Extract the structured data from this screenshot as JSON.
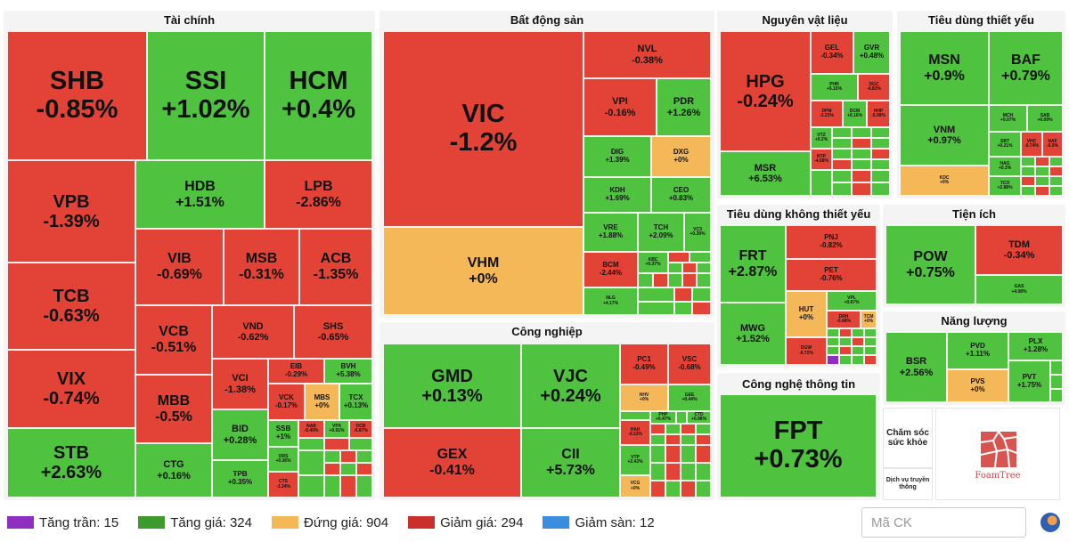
{
  "sectors": {
    "tai_chinh": "Tài chính",
    "bat_dong_san": "Bất động sản",
    "nguyen_vat_lieu": "Nguyên vật liệu",
    "tieu_dung_thiet_yeu": "Tiêu dùng thiết yếu",
    "tieu_dung_khong_thiet_yeu": "Tiêu dùng không thiết yếu",
    "tien_ich": "Tiện ích",
    "cong_nghiep": "Công nghiệp",
    "nang_luong": "Năng lượng",
    "cong_nghe_thong_tin": "Công nghệ thông tin",
    "cham_soc_suc_khoe": "Chăm sóc sức khỏe",
    "dich_vu_truyen_thong": "Dịch vụ truyền thông"
  },
  "stocks": {
    "SHB": {
      "symbol": "SHB",
      "change": "-0.85%"
    },
    "SSI": {
      "symbol": "SSI",
      "change": "+1.02%"
    },
    "HCM": {
      "symbol": "HCM",
      "change": "+0.4%"
    },
    "VPB": {
      "symbol": "VPB",
      "change": "-1.39%"
    },
    "HDB": {
      "symbol": "HDB",
      "change": "+1.51%"
    },
    "LPB": {
      "symbol": "LPB",
      "change": "-2.86%"
    },
    "VIB": {
      "symbol": "VIB",
      "change": "-0.69%"
    },
    "MSB": {
      "symbol": "MSB",
      "change": "-0.31%"
    },
    "ACB": {
      "symbol": "ACB",
      "change": "-1.35%"
    },
    "TCB": {
      "symbol": "TCB",
      "change": "-0.63%"
    },
    "VCB": {
      "symbol": "VCB",
      "change": "-0.51%"
    },
    "VND": {
      "symbol": "VND",
      "change": "-0.62%"
    },
    "SHS": {
      "symbol": "SHS",
      "change": "-0.65%"
    },
    "VIX": {
      "symbol": "VIX",
      "change": "-0.74%"
    },
    "VCI": {
      "symbol": "VCI",
      "change": "-1.38%"
    },
    "EIB": {
      "symbol": "EIB",
      "change": "-0.29%"
    },
    "BVH": {
      "symbol": "BVH",
      "change": "+5.38%"
    },
    "MBB": {
      "symbol": "MBB",
      "change": "-0.5%"
    },
    "VCK": {
      "symbol": "VCK",
      "change": "-0.17%"
    },
    "MBS": {
      "symbol": "MBS",
      "change": "+0%"
    },
    "TCX": {
      "symbol": "TCX",
      "change": "+0.13%"
    },
    "STB": {
      "symbol": "STB",
      "change": "+2.63%"
    },
    "BID": {
      "symbol": "BID",
      "change": "+0.28%"
    },
    "SSB": {
      "symbol": "SSB",
      "change": "+1%"
    },
    "ORS": {
      "symbol": "ORS",
      "change": "+0.36%"
    },
    "CTG": {
      "symbol": "CTG",
      "change": "+0.16%"
    },
    "TPB": {
      "symbol": "TPB",
      "change": "+0.35%"
    },
    "CTS": {
      "symbol": "CTS",
      "change": "-1.34%"
    },
    "NAB": {
      "symbol": "NAB",
      "change": "-0.40%"
    },
    "VPX": {
      "symbol": "VPX",
      "change": "+0.91%"
    },
    "OCB": {
      "symbol": "OCB",
      "change": "-0.87%"
    },
    "VIC": {
      "symbol": "VIC",
      "change": "-1.2%"
    },
    "VHM": {
      "symbol": "VHM",
      "change": "+0%"
    },
    "NVL": {
      "symbol": "NVL",
      "change": "-0.38%"
    },
    "VPI": {
      "symbol": "VPI",
      "change": "-0.16%"
    },
    "PDR": {
      "symbol": "PDR",
      "change": "+1.26%"
    },
    "DIG": {
      "symbol": "DIG",
      "change": "+1.39%"
    },
    "DXG": {
      "symbol": "DXG",
      "change": "+0%"
    },
    "KDH": {
      "symbol": "KDH",
      "change": "+1.69%"
    },
    "CEO": {
      "symbol": "CEO",
      "change": "+0.83%"
    },
    "VRE": {
      "symbol": "VRE",
      "change": "+1.88%"
    },
    "TCH": {
      "symbol": "TCH",
      "change": "+2.09%"
    },
    "VC3": {
      "symbol": "VC3",
      "change": "+0.39%"
    },
    "BCM": {
      "symbol": "BCM",
      "change": "-2.44%"
    },
    "KBC": {
      "symbol": "KBC",
      "change": "+0.37%"
    },
    "NLG": {
      "symbol": "NLG",
      "change": "+4.17%"
    },
    "HPG": {
      "symbol": "HPG",
      "change": "-0.24%"
    },
    "GEL": {
      "symbol": "GEL",
      "change": "-0.34%"
    },
    "GVR": {
      "symbol": "GVR",
      "change": "+0.48%"
    },
    "PHR": {
      "symbol": "PHR",
      "change": "+5.15%"
    },
    "DGC": {
      "symbol": "DGC",
      "change": "-4.83%"
    },
    "DPM": {
      "symbol": "DPM",
      "change": "-2.23%"
    },
    "DCM": {
      "symbol": "DCM",
      "change": "+0.16%"
    },
    "HHP": {
      "symbol": "HHP",
      "change": "-5.98%"
    },
    "VTZ": {
      "symbol": "VTZ",
      "change": "+0.2%"
    },
    "MSR": {
      "symbol": "MSR",
      "change": "+6.53%"
    },
    "NTP": {
      "symbol": "NTP",
      "change": "-4.68%"
    },
    "MSN": {
      "symbol": "MSN",
      "change": "+0.9%"
    },
    "BAF": {
      "symbol": "BAF",
      "change": "+0.79%"
    },
    "VNM": {
      "symbol": "VNM",
      "change": "+0.97%"
    },
    "MCH": {
      "symbol": "MCH",
      "change": "+0.07%"
    },
    "SAB": {
      "symbol": "SAB",
      "change": "+0.09%"
    },
    "SBT": {
      "symbol": "SBT",
      "change": "+0.21%"
    },
    "VHC": {
      "symbol": "VHC",
      "change": "-0.74%"
    },
    "NAF": {
      "symbol": "NAF",
      "change": "-0.9%"
    },
    "HAG": {
      "symbol": "HAG",
      "change": "+0.3%"
    },
    "KDC": {
      "symbol": "KDC",
      "change": "+0%"
    },
    "TCO": {
      "symbol": "TCO",
      "change": "+2.88%"
    },
    "FRT": {
      "symbol": "FRT",
      "change": "+2.87%"
    },
    "PNJ": {
      "symbol": "PNJ",
      "change": "-0.82%"
    },
    "PET": {
      "symbol": "PET",
      "change": "-0.76%"
    },
    "HUT": {
      "symbol": "HUT",
      "change": "+0%"
    },
    "VPL": {
      "symbol": "VPL",
      "change": "+0.67%"
    },
    "DRH": {
      "symbol": "DRH",
      "change": "-0.48%"
    },
    "TCM": {
      "symbol": "TCM",
      "change": "+0%"
    },
    "MWG": {
      "symbol": "MWG",
      "change": "+1.52%"
    },
    "DGW": {
      "symbol": "DGW",
      "change": "-0.72%"
    },
    "POW": {
      "symbol": "POW",
      "change": "+0.75%"
    },
    "TDM": {
      "symbol": "TDM",
      "change": "-0.34%"
    },
    "GAS": {
      "symbol": "GAS",
      "change": "+4.08%"
    },
    "GMD": {
      "symbol": "GMD",
      "change": "+0.13%"
    },
    "VJC": {
      "symbol": "VJC",
      "change": "+0.24%"
    },
    "PC1": {
      "symbol": "PC1",
      "change": "-0.49%"
    },
    "VSC": {
      "symbol": "VSC",
      "change": "-0.68%"
    },
    "HHV": {
      "symbol": "HHV",
      "change": "+0%"
    },
    "GEE": {
      "symbol": "GEE",
      "change": "+0.44%"
    },
    "PHP": {
      "symbol": "PHP",
      "change": "+0.47%"
    },
    "CTD": {
      "symbol": "CTD",
      "change": "+0.98%"
    },
    "HAH": {
      "symbol": "HAH",
      "change": "-0.22%"
    },
    "GEX": {
      "symbol": "GEX",
      "change": "-0.41%"
    },
    "CII": {
      "symbol": "CII",
      "change": "+5.73%"
    },
    "VTP": {
      "symbol": "VTP",
      "change": "+2.43%"
    },
    "VCG": {
      "symbol": "VCG",
      "change": "+0%"
    },
    "BSR": {
      "symbol": "BSR",
      "change": "+2.56%"
    },
    "PVD": {
      "symbol": "PVD",
      "change": "+1.11%"
    },
    "PLX": {
      "symbol": "PLX",
      "change": "+1.28%"
    },
    "PVS": {
      "symbol": "PVS",
      "change": "+0%"
    },
    "PVT": {
      "symbol": "PVT",
      "change": "+1.75%"
    },
    "FPT": {
      "symbol": "FPT",
      "change": "+0.73%"
    }
  },
  "colors": {
    "ceiling": "#8e2fbf",
    "up": "#4fc23f",
    "unchanged": "#f5b858",
    "down": "#e34336",
    "floor": "#3b8de0"
  },
  "legend": {
    "ceiling": "Tăng trần: 15",
    "up": "Tăng giá: 324",
    "unchanged": "Đứng giá: 904",
    "down": "Giảm giá: 294",
    "floor": "Giảm sàn: 12"
  },
  "search": {
    "placeholder": "Mã CK"
  },
  "foamtree": {
    "label": "FoamTree"
  },
  "icons": {
    "language": "globe-icon",
    "brand": "foamtree-logo-icon"
  }
}
